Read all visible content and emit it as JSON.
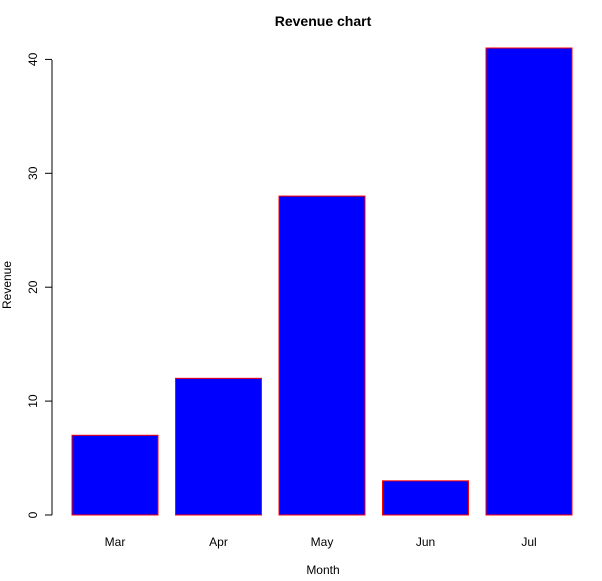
{
  "chart_data": {
    "type": "bar",
    "title": "Revenue chart",
    "xlabel": "Month",
    "ylabel": "Revenue",
    "categories": [
      "Mar",
      "Apr",
      "May",
      "Jun",
      "Jul"
    ],
    "values": [
      7,
      12,
      28,
      3,
      41
    ],
    "yticks": [
      "0",
      "10",
      "20",
      "30",
      "40"
    ],
    "ylim": [
      0,
      41
    ],
    "grid": false,
    "legend": "none",
    "colors": {
      "bar_fill": "#0000ff",
      "bar_border": "#ff0000",
      "axis": "#000000",
      "background": "#ffffff"
    }
  }
}
